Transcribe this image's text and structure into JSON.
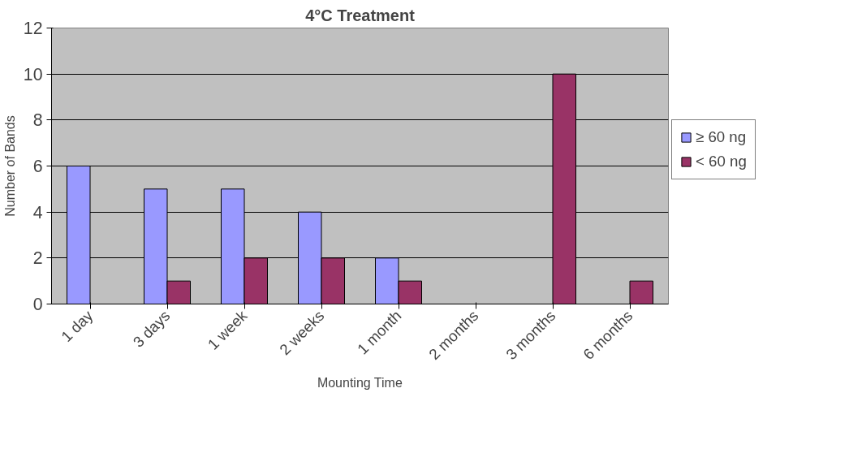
{
  "chart_data": {
    "type": "bar",
    "title": "4°C Treatment",
    "xlabel": "Mounting Time",
    "ylabel": "Number of Bands",
    "categories": [
      "1 day",
      "3 days",
      "1 week",
      "2 weeks",
      "1 month",
      "2 months",
      "3 months",
      "6 months"
    ],
    "series": [
      {
        "name": "≥ 60 ng",
        "color": "#9999ff",
        "values": [
          6,
          5,
          5,
          4,
          2,
          null,
          null,
          null
        ]
      },
      {
        "name": "< 60 ng",
        "color": "#993366",
        "values": [
          null,
          1,
          2,
          2,
          1,
          null,
          10,
          1
        ]
      }
    ],
    "ylim": [
      0,
      12
    ],
    "yticks": [
      0,
      2,
      4,
      6,
      8,
      10,
      12
    ],
    "grid": "y",
    "legend": "right"
  }
}
